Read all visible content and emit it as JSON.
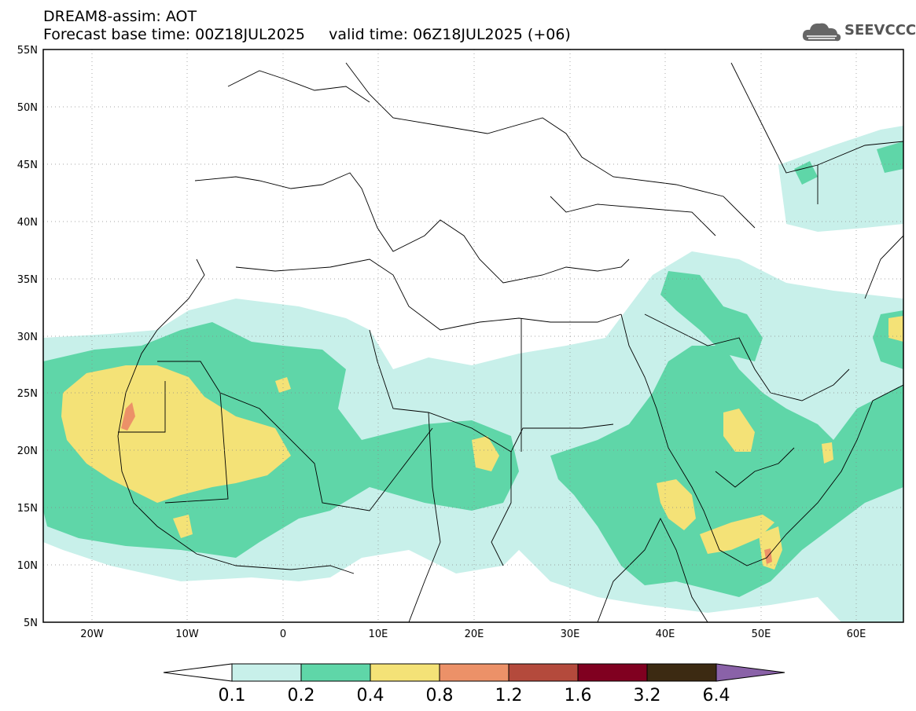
{
  "header": {
    "line1": "DREAM8-assim: AOT",
    "line2": "Forecast base time: 00Z18JUL2025     valid time: 06Z18JUL2025 (+06)"
  },
  "logo": {
    "text": "SEEVCCC",
    "icon": "cloud-icon"
  },
  "map": {
    "lon_range": [
      -25,
      65
    ],
    "lat_range": [
      5,
      55
    ],
    "lat_labels": [
      "55N",
      "50N",
      "45N",
      "40N",
      "35N",
      "30N",
      "25N",
      "20N",
      "15N",
      "10N",
      "5N"
    ],
    "lon_labels": [
      "20W",
      "10W",
      "0",
      "10E",
      "20E",
      "30E",
      "40E",
      "50E",
      "60E"
    ]
  },
  "colorbar": {
    "labels": [
      "0.1",
      "0.2",
      "0.4",
      "0.8",
      "1.2",
      "1.6",
      "3.2",
      "6.4"
    ],
    "colors": [
      "#c8f0ea",
      "#5fd6a8",
      "#f4e277",
      "#ec9168",
      "#b44a3c",
      "#800020",
      "#3c2a12",
      "#8a62a8"
    ]
  }
}
